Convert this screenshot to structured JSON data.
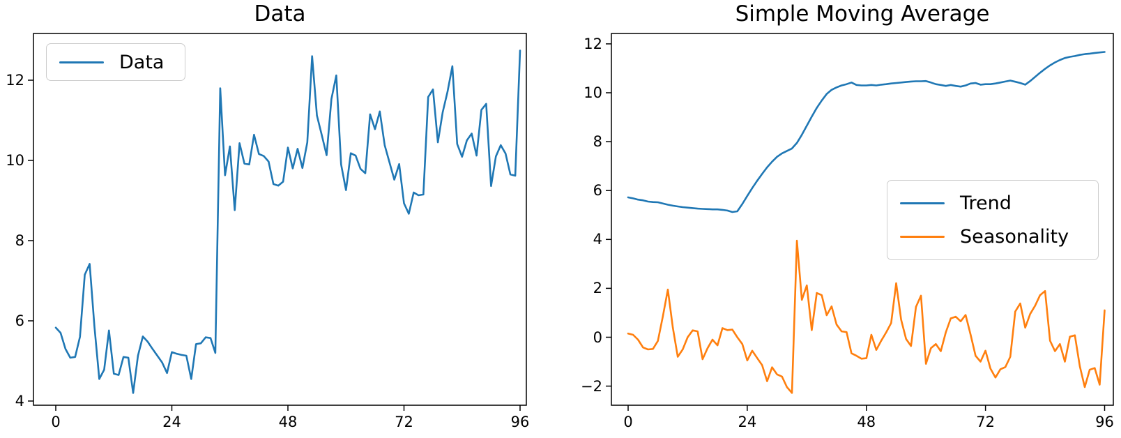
{
  "chart_data": [
    {
      "type": "line",
      "title": "Data",
      "xlabel": "",
      "ylabel": "",
      "x_ticks": [
        0,
        24,
        48,
        72,
        96
      ],
      "y_ticks": [
        4,
        6,
        8,
        10,
        12
      ],
      "xlim": [
        -4.8,
        100.8
      ],
      "ylim": [
        3.8,
        13.17
      ],
      "grid": false,
      "legend": {
        "position": "upper-left",
        "items": [
          {
            "label": "Data",
            "color": "#1f77b4"
          }
        ]
      },
      "series": [
        {
          "name": "Data",
          "color": "#1f77b4",
          "x_start": 0,
          "x_step": 1,
          "values": [
            5.83,
            5.7,
            5.3,
            5.08,
            5.1,
            5.6,
            7.15,
            7.42,
            5.85,
            4.55,
            4.78,
            5.76,
            4.68,
            4.65,
            5.1,
            5.08,
            4.2,
            5.13,
            5.61,
            5.48,
            5.3,
            5.13,
            4.96,
            4.7,
            5.22,
            5.18,
            5.15,
            5.13,
            4.55,
            5.42,
            5.44,
            5.59,
            5.57,
            5.2,
            11.8,
            9.63,
            10.35,
            8.76,
            10.43,
            9.92,
            9.9,
            10.64,
            10.16,
            10.11,
            9.97,
            9.41,
            9.37,
            9.47,
            10.32,
            9.8,
            10.29,
            9.81,
            10.45,
            12.6,
            11.12,
            10.63,
            10.13,
            11.53,
            12.12,
            9.9,
            9.26,
            10.18,
            10.12,
            9.79,
            9.68,
            11.15,
            10.78,
            11.22,
            10.38,
            9.95,
            9.52,
            9.91,
            8.93,
            8.67,
            9.2,
            9.13,
            9.15,
            11.58,
            11.77,
            10.45,
            11.2,
            11.71,
            12.35,
            10.41,
            10.09,
            10.5,
            10.67,
            10.12,
            11.26,
            11.41,
            9.36,
            10.1,
            10.38,
            10.17,
            9.65,
            9.62,
            12.74
          ]
        }
      ]
    },
    {
      "type": "line",
      "title": "Simple Moving Average",
      "xlabel": "",
      "ylabel": "",
      "x_ticks": [
        0,
        24,
        48,
        72,
        96
      ],
      "y_ticks": [
        -2,
        0,
        2,
        4,
        6,
        8,
        10,
        12
      ],
      "xlim": [
        -4.8,
        100.8
      ],
      "ylim": [
        -2.8,
        12.4
      ],
      "grid": false,
      "legend": {
        "position": "center-right",
        "items": [
          {
            "label": "Trend",
            "color": "#1f77b4"
          },
          {
            "label": "Seasonality",
            "color": "#ff7f0e"
          }
        ]
      },
      "series": [
        {
          "name": "Trend",
          "color": "#1f77b4",
          "x_start": 0,
          "x_step": 1,
          "values": [
            5.72,
            5.68,
            5.63,
            5.6,
            5.55,
            5.53,
            5.52,
            5.47,
            5.42,
            5.38,
            5.35,
            5.32,
            5.3,
            5.28,
            5.26,
            5.25,
            5.24,
            5.23,
            5.23,
            5.21,
            5.18,
            5.12,
            5.15,
            5.45,
            5.78,
            6.1,
            6.4,
            6.68,
            6.95,
            7.18,
            7.38,
            7.52,
            7.62,
            7.72,
            7.95,
            8.28,
            8.65,
            9.02,
            9.38,
            9.68,
            9.95,
            10.12,
            10.22,
            10.3,
            10.35,
            10.42,
            10.32,
            10.3,
            10.3,
            10.32,
            10.3,
            10.33,
            10.35,
            10.38,
            10.4,
            10.42,
            10.44,
            10.46,
            10.47,
            10.47,
            10.48,
            10.42,
            10.35,
            10.32,
            10.28,
            10.32,
            10.28,
            10.25,
            10.3,
            10.38,
            10.4,
            10.33,
            10.35,
            10.35,
            10.38,
            10.42,
            10.46,
            10.5,
            10.45,
            10.4,
            10.33,
            10.48,
            10.65,
            10.82,
            10.98,
            11.12,
            11.24,
            11.34,
            11.42,
            11.47,
            11.5,
            11.55,
            11.58,
            11.6,
            11.63,
            11.65,
            11.67
          ]
        },
        {
          "name": "Seasonality",
          "color": "#ff7f0e",
          "x_start": 0,
          "x_step": 1,
          "values": [
            0.15,
            0.1,
            -0.1,
            -0.42,
            -0.5,
            -0.48,
            -0.15,
            0.85,
            1.95,
            0.4,
            -0.8,
            -0.5,
            0.0,
            0.28,
            0.24,
            -0.9,
            -0.45,
            -0.1,
            -0.33,
            0.37,
            0.29,
            0.31,
            0.0,
            -0.28,
            -0.95,
            -0.55,
            -0.85,
            -1.14,
            -1.8,
            -1.23,
            -1.52,
            -1.61,
            -2.04,
            -2.28,
            3.95,
            1.53,
            2.12,
            0.29,
            1.81,
            1.72,
            0.9,
            1.26,
            0.52,
            0.24,
            0.21,
            -0.66,
            -0.76,
            -0.88,
            -0.86,
            0.1,
            -0.52,
            -0.14,
            0.2,
            0.58,
            2.21,
            0.72,
            -0.07,
            -0.36,
            1.24,
            1.7,
            -1.09,
            -0.45,
            -0.28,
            -0.57,
            0.2,
            0.77,
            0.84,
            0.65,
            0.91,
            0.1,
            -0.76,
            -1.0,
            -0.55,
            -1.28,
            -1.65,
            -1.31,
            -1.22,
            -0.8,
            1.05,
            1.38,
            0.39,
            0.95,
            1.29,
            1.72,
            1.89,
            -0.14,
            -0.57,
            -0.28,
            -1.0,
            0.02,
            0.08,
            -1.18,
            -2.04,
            -1.33,
            -1.26,
            -1.94,
            1.1
          ]
        }
      ]
    }
  ]
}
